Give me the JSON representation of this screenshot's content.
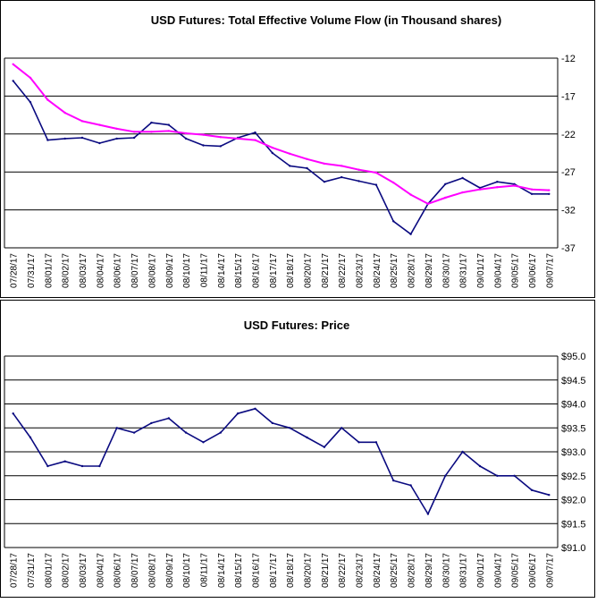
{
  "chart_data": [
    {
      "type": "line",
      "title": "USD Futures: Total Effective Volume Flow (in Thousand shares)",
      "xlabel": "",
      "ylabel": "",
      "ylim": [
        -37,
        -12
      ],
      "yticks": [
        "-12",
        "-17",
        "-22",
        "-27",
        "-32",
        "-37"
      ],
      "ytick_values": [
        -12,
        -17,
        -22,
        -27,
        -32,
        -37
      ],
      "grid": true,
      "legend": "none",
      "categories": [
        "07/28/17",
        "07/31/17",
        "08/01/17",
        "08/02/17",
        "08/03/17",
        "08/04/17",
        "08/06/17",
        "08/07/17",
        "08/08/17",
        "08/09/17",
        "08/10/17",
        "08/11/17",
        "08/14/17",
        "08/15/17",
        "08/16/17",
        "08/17/17",
        "08/18/17",
        "08/20/17",
        "08/21/17",
        "08/22/17",
        "08/23/17",
        "08/24/17",
        "08/25/17",
        "08/28/17",
        "08/29/17",
        "08/30/17",
        "08/31/17",
        "09/01/17",
        "09/04/17",
        "09/05/17",
        "09/06/17",
        "09/07/17"
      ],
      "series": [
        {
          "color": "#0a0a80",
          "values": [
            -15,
            -17.8,
            -22.8,
            -22.6,
            -22.5,
            -23.2,
            -22.6,
            -22.5,
            -20.5,
            -20.8,
            -22.6,
            -23.5,
            -23.6,
            -22.5,
            -21.8,
            -24.5,
            -26.2,
            -26.5,
            -28.3,
            -27.7,
            -28.2,
            -28.7,
            -33.5,
            -35.2,
            -31.2,
            -28.6,
            -27.8,
            -29.1,
            -28.3,
            -28.6,
            -29.9,
            -29.9
          ]
        },
        {
          "color": "#ff00ff",
          "values": [
            -12.8,
            -14.6,
            -17.5,
            -19.2,
            -20.3,
            -20.8,
            -21.3,
            -21.7,
            -21.7,
            -21.6,
            -21.9,
            -22.1,
            -22.4,
            -22.6,
            -22.8,
            -23.8,
            -24.6,
            -25.3,
            -25.9,
            -26.2,
            -26.7,
            -27.1,
            -28.4,
            -30.0,
            -31.2,
            -30.4,
            -29.7,
            -29.3,
            -29.0,
            -28.8,
            -29.3,
            -29.4
          ]
        }
      ]
    },
    {
      "type": "line",
      "title": "USD Futures: Price",
      "xlabel": "",
      "ylabel": "",
      "ylim": [
        91.0,
        95.0
      ],
      "yticks": [
        "$95.0",
        "$94.5",
        "$94.0",
        "$93.5",
        "$93.0",
        "$92.5",
        "$92.0",
        "$91.5",
        "$91.0"
      ],
      "ytick_values": [
        95.0,
        94.5,
        94.0,
        93.5,
        93.0,
        92.5,
        92.0,
        91.5,
        91.0
      ],
      "grid": true,
      "legend": "none",
      "categories": [
        "07/28/17",
        "07/31/17",
        "08/01/17",
        "08/02/17",
        "08/03/17",
        "08/04/17",
        "08/06/17",
        "08/07/17",
        "08/08/17",
        "08/09/17",
        "08/10/17",
        "08/11/17",
        "08/14/17",
        "08/15/17",
        "08/16/17",
        "08/17/17",
        "08/18/17",
        "08/20/17",
        "08/21/17",
        "08/22/17",
        "08/23/17",
        "08/24/17",
        "08/25/17",
        "08/28/17",
        "08/29/17",
        "08/30/17",
        "08/31/17",
        "09/01/17",
        "09/04/17",
        "09/05/17",
        "09/06/17",
        "09/07/17"
      ],
      "series": [
        {
          "color": "#0a0a80",
          "values": [
            93.8,
            93.3,
            92.7,
            92.8,
            92.7,
            92.7,
            93.5,
            93.4,
            93.6,
            93.7,
            93.4,
            93.2,
            93.4,
            93.8,
            93.9,
            93.6,
            93.5,
            93.3,
            93.1,
            93.5,
            93.2,
            93.2,
            92.4,
            92.3,
            91.7,
            92.5,
            93.0,
            92.7,
            92.5,
            92.5,
            92.2,
            92.1
          ]
        }
      ]
    }
  ]
}
